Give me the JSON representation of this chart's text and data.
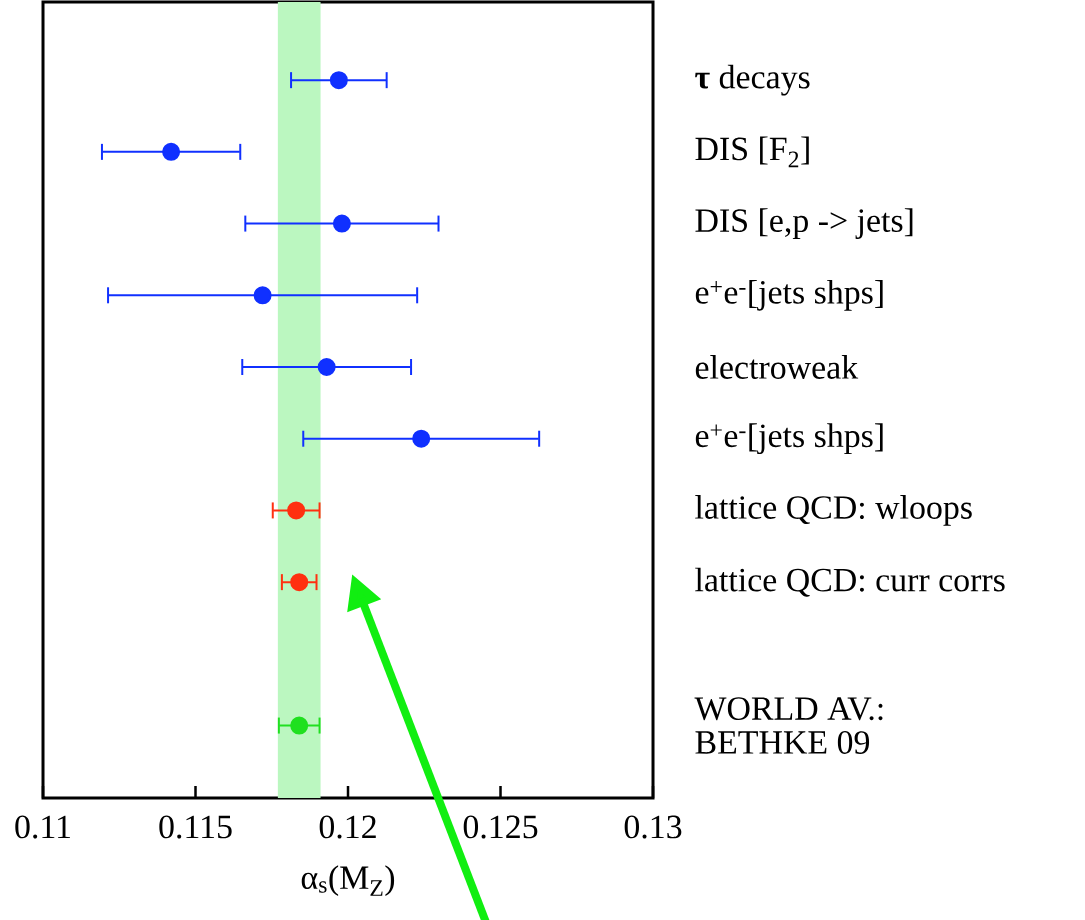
{
  "chart_data": {
    "type": "scatter",
    "orientation": "horizontal",
    "xlabel": "α$_{s}$(M$_{Z}$)",
    "categories": [
      "**τ** decays",
      "DIS [F$_{2}$]",
      "DIS [e,p -> jets]",
      "e$^{+}$e$^{-}$[jets  shps]",
      "electroweak",
      "e$^{+}$e$^{-}$[jets  shps]",
      "lattice QCD: wloops",
      "lattice QCD: curr corrs",
      null,
      "WORLD AV.: BETHKE 09"
    ],
    "series": [
      {
        "color": "#1030ff",
        "values": [
          0.1197,
          0.1142,
          0.1198,
          0.1172,
          0.1193,
          0.1224,
          null,
          null,
          null,
          null
        ],
        "errors": [
          [
            0.1181,
            0.1213
          ],
          [
            0.1119,
            0.1165
          ],
          [
            0.1166,
            0.123
          ],
          [
            0.1121,
            0.1223
          ],
          [
            0.1165,
            0.1221
          ],
          [
            0.1185,
            0.1263
          ],
          null,
          null,
          null,
          null
        ]
      },
      {
        "color": "#ff3010",
        "values": [
          null,
          null,
          null,
          null,
          null,
          null,
          0.1183,
          0.1184,
          null,
          null
        ],
        "errors": [
          null,
          null,
          null,
          null,
          null,
          null,
          [
            0.1175,
            0.1191
          ],
          [
            0.1178,
            0.119
          ],
          null,
          null
        ]
      },
      {
        "color": "#20e020",
        "values": [
          null,
          null,
          null,
          null,
          null,
          null,
          null,
          null,
          null,
          0.1184
        ],
        "errors": [
          null,
          null,
          null,
          null,
          null,
          null,
          null,
          null,
          null,
          [
            0.1177,
            0.1191
          ]
        ]
      }
    ],
    "xlim": [
      0.11,
      0.13
    ],
    "xticks": [
      0.11,
      0.115,
      0.12,
      0.125,
      0.13
    ],
    "bands": [
      {
        "axis": "x",
        "from": 0.1177,
        "to": 0.1191,
        "color": "#bbf7c0"
      }
    ],
    "grid": false
  }
}
